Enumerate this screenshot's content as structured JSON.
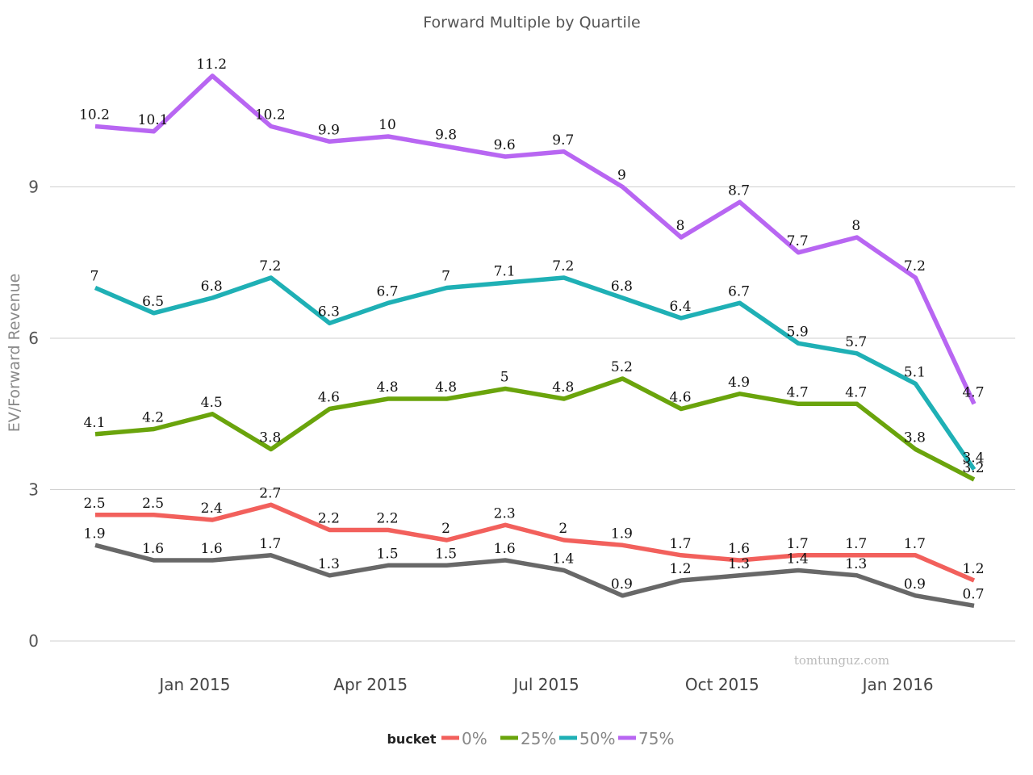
{
  "chart_data": {
    "type": "line",
    "title": "Forward Multiple by Quartile",
    "xlabel": "",
    "ylabel": "EV/Forward Revenue",
    "ylim": [
      0,
      12
    ],
    "yticks": [
      0,
      3,
      6,
      9
    ],
    "xtick_labels": [
      "Jan 2015",
      "Apr 2015",
      "Jul 2015",
      "Oct 2015",
      "Jan 2016"
    ],
    "xtick_positions": [
      1.7,
      4.7,
      7.7,
      10.7,
      13.7
    ],
    "x": [
      0,
      1,
      2,
      3,
      4,
      5,
      6,
      7,
      8,
      9,
      10,
      11,
      12,
      13,
      14,
      15
    ],
    "grid": true,
    "legend": {
      "title": "bucket",
      "position": "bottom"
    },
    "watermark": "tomtunguz.com",
    "series": [
      {
        "name": "75%",
        "color": "#b866f2",
        "values": [
          10.2,
          10.1,
          11.2,
          10.2,
          9.9,
          10,
          9.8,
          9.6,
          9.7,
          9,
          8,
          8.7,
          7.7,
          8,
          7.2,
          4.7
        ],
        "labels": [
          "10.2",
          "10.1",
          "11.2",
          "10.2",
          "9.9",
          "10",
          "9.8",
          "9.6",
          "9.7",
          "9",
          "8",
          "8.7",
          "7.7",
          "8",
          "7.2",
          "4.7"
        ],
        "in_legend": true
      },
      {
        "name": "50%",
        "color": "#1fb0b5",
        "values": [
          7,
          6.5,
          6.8,
          7.2,
          6.3,
          6.7,
          7,
          7.1,
          7.2,
          6.8,
          6.4,
          6.7,
          5.9,
          5.7,
          5.1,
          3.4
        ],
        "labels": [
          "7",
          "6.5",
          "6.8",
          "7.2",
          "6.3",
          "6.7",
          "7",
          "7.1",
          "7.2",
          "6.8",
          "6.4",
          "6.7",
          "5.9",
          "5.7",
          "5.1",
          "3.4"
        ],
        "in_legend": true
      },
      {
        "name": "25%",
        "color": "#6aa40c",
        "values": [
          4.1,
          4.2,
          4.5,
          3.8,
          4.6,
          4.8,
          4.8,
          5,
          4.8,
          5.2,
          4.6,
          4.9,
          4.7,
          4.7,
          3.8,
          3.2
        ],
        "labels": [
          "4.1",
          "4.2",
          "4.5",
          "3.8",
          "4.6",
          "4.8",
          "4.8",
          "5",
          "4.8",
          "5.2",
          "4.6",
          "4.9",
          "4.7",
          "4.7",
          "3.8",
          "3.2"
        ],
        "in_legend": true
      },
      {
        "name": "0%",
        "color": "#f2605c",
        "values": [
          2.5,
          2.5,
          2.4,
          2.7,
          2.2,
          2.2,
          2,
          2.3,
          2,
          1.9,
          1.7,
          1.6,
          1.7,
          1.7,
          1.7,
          1.2
        ],
        "labels": [
          "2.5",
          "2.5",
          "2.4",
          "2.7",
          "2.2",
          "2.2",
          "2",
          "2.3",
          "2",
          "1.9",
          "1.7",
          "1.6",
          "1.7",
          "1.7",
          "1.7",
          "1.2"
        ],
        "in_legend": true
      },
      {
        "name": "",
        "color": "#686868",
        "values": [
          1.9,
          1.6,
          1.6,
          1.7,
          1.3,
          1.5,
          1.5,
          1.6,
          1.4,
          0.9,
          1.2,
          1.3,
          1.4,
          1.3,
          0.9,
          0.7
        ],
        "labels": [
          "1.9",
          "1.6",
          "1.6",
          "1.7",
          "1.3",
          "1.5",
          "1.5",
          "1.6",
          "1.4",
          "0.9",
          "1.2",
          "1.3",
          "1.4",
          "1.3",
          "0.9",
          "0.7"
        ],
        "in_legend": false
      }
    ]
  }
}
